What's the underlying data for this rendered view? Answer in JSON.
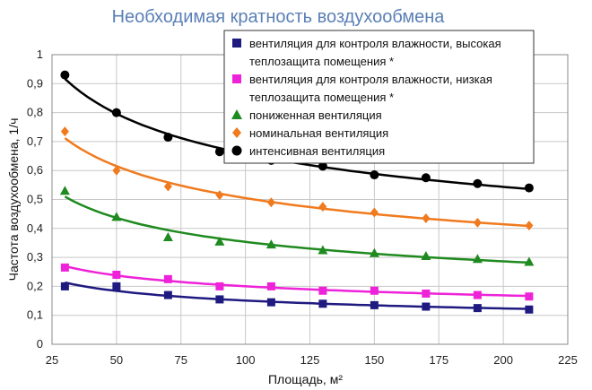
{
  "chart_data": {
    "type": "scatter",
    "title": "Необходимая кратность воздухообмена",
    "xlabel": "Площадь, м²",
    "ylabel": "Частота воздухообмена, 1/ч",
    "xlim": [
      25,
      225
    ],
    "ylim": [
      0,
      1
    ],
    "x_ticks": [
      "25",
      "50",
      "75",
      "100",
      "125",
      "150",
      "175",
      "200",
      "225"
    ],
    "y_ticks": [
      "0",
      "0,1",
      "0,2",
      "0,3",
      "0,4",
      "0,5",
      "0,6",
      "0,7",
      "0,8",
      "0,9",
      "1"
    ],
    "grid": true,
    "legend": "top-right",
    "x": [
      30,
      50,
      70,
      90,
      110,
      130,
      150,
      170,
      190,
      210
    ],
    "series": [
      {
        "name": "вентиляция для контроля влажности, высокая теплозащита помещения *",
        "legend_lines": [
          "вентиляция для контроля влажности, высокая",
          "теплозащита помещения *"
        ],
        "marker": "square",
        "color": "#1f1a80",
        "values": [
          0.2,
          0.2,
          0.17,
          0.155,
          0.145,
          0.14,
          0.135,
          0.13,
          0.125,
          0.12
        ]
      },
      {
        "name": "вентиляция для контроля влажности, низкая теплозащита помещения *",
        "legend_lines": [
          "вентиляция для контроля влажности, низкая",
          "теплозащита помещения *"
        ],
        "marker": "square",
        "color": "#ee22d8",
        "values": [
          0.265,
          0.24,
          0.225,
          0.2,
          0.2,
          0.185,
          0.185,
          0.175,
          0.17,
          0.165
        ]
      },
      {
        "name": "пониженная вентиляция",
        "legend_lines": [
          "пониженная вентиляция"
        ],
        "marker": "triangle",
        "color": "#1f8a1f",
        "values": [
          0.53,
          0.44,
          0.37,
          0.355,
          0.345,
          0.325,
          0.315,
          0.305,
          0.295,
          0.285
        ]
      },
      {
        "name": "номинальная вентиляция",
        "legend_lines": [
          "номинальная вентиляция"
        ],
        "marker": "diamond",
        "color": "#f07a1e",
        "values": [
          0.735,
          0.6,
          0.545,
          0.515,
          0.49,
          0.475,
          0.455,
          0.435,
          0.42,
          0.41
        ]
      },
      {
        "name": "интенсивная вентиляция",
        "legend_lines": [
          "интенсивная вентиляция"
        ],
        "marker": "circle",
        "color": "#000000",
        "values": [
          0.93,
          0.8,
          0.715,
          0.665,
          0.635,
          0.615,
          0.585,
          0.575,
          0.555,
          0.54
        ]
      }
    ]
  }
}
